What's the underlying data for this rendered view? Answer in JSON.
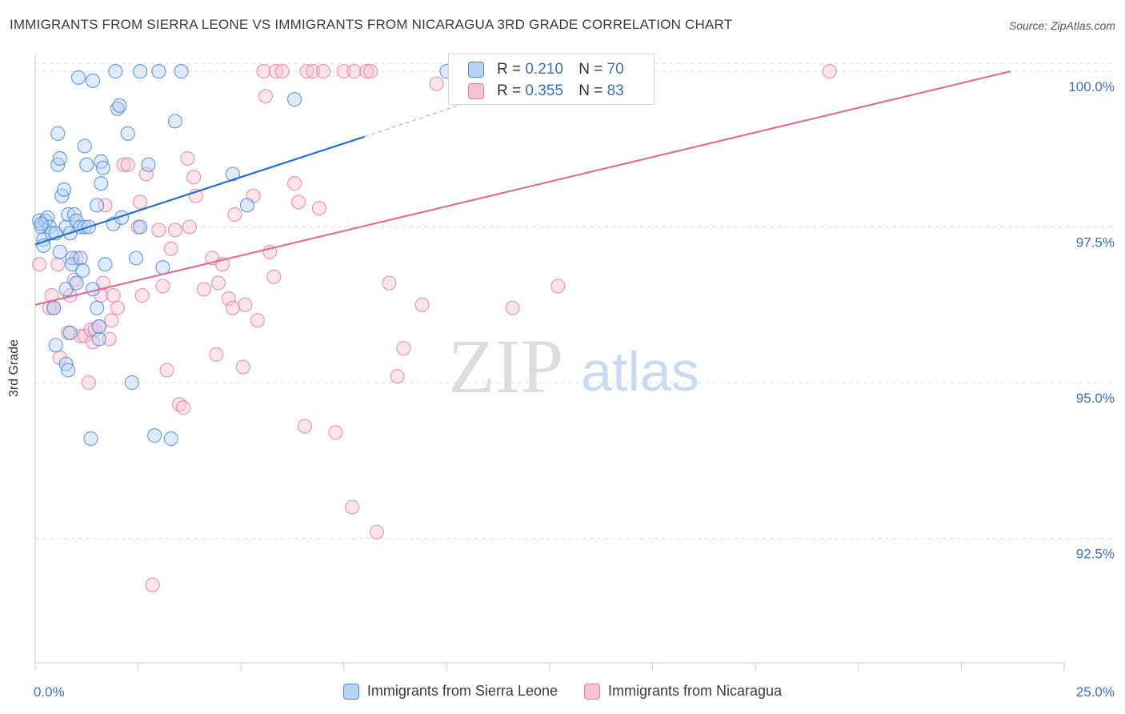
{
  "title": "IMMIGRANTS FROM SIERRA LEONE VS IMMIGRANTS FROM NICARAGUA 3RD GRADE CORRELATION CHART",
  "source": "Source: ZipAtlas.com",
  "watermark": {
    "zip": "ZIP",
    "atlas": "atlas"
  },
  "colors": {
    "blue": "#4a8ad8",
    "blue_fill": "#b9d1f3",
    "blue_line": "#2a6fca",
    "pink": "#e37aa0",
    "pink_fill": "#f7c3d3",
    "pink_line": "#e06f98",
    "axis_text": "#3a6fc4",
    "grid": "#dddddd"
  },
  "stats": {
    "blue": {
      "r_label": "R =",
      "r_value": "0.210",
      "n_label": "N =",
      "n_value": "70"
    },
    "pink": {
      "r_label": "R =",
      "r_value": "0.355",
      "n_label": "N =",
      "n_value": "83"
    }
  },
  "legend": {
    "series_blue": "Immigrants from Sierra Leone",
    "series_pink": "Immigrants from Nicaragua"
  },
  "chart_data": {
    "type": "scatter",
    "title": "IMMIGRANTS FROM SIERRA LEONE VS IMMIGRANTS FROM NICARAGUA 3RD GRADE CORRELATION CHART",
    "xlabel": "",
    "ylabel": "3rd Grade",
    "xlim": [
      0,
      25
    ],
    "ylim": [
      90.5,
      100.4
    ],
    "x_tick_labels": [
      {
        "value": 0,
        "label": "0.0%"
      },
      {
        "value": 25,
        "label": "25.0%"
      }
    ],
    "y_tick_labels": [
      {
        "value": 100,
        "label": "100.0%"
      },
      {
        "value": 97.5,
        "label": "97.5%"
      },
      {
        "value": 95,
        "label": "95.0%"
      },
      {
        "value": 92.5,
        "label": "92.5%"
      }
    ],
    "grid": true,
    "series": [
      {
        "name": "Immigrants from Sierra Leone",
        "color": "#4a8ad8",
        "trend": {
          "x0": 0,
          "y0": 97.22,
          "x1": 8.0,
          "y1": 98.95,
          "dashed_to_x": 10.5,
          "dashed_to_y": 99.5
        },
        "points": [
          [
            0.1,
            97.6
          ],
          [
            0.15,
            97.5
          ],
          [
            0.2,
            97.3
          ],
          [
            0.2,
            97.2
          ],
          [
            0.25,
            97.6
          ],
          [
            0.3,
            97.65
          ],
          [
            0.35,
            97.5
          ],
          [
            0.4,
            97.4
          ],
          [
            0.45,
            96.2
          ],
          [
            0.5,
            95.6
          ],
          [
            0.5,
            97.4
          ],
          [
            0.55,
            99.0
          ],
          [
            0.55,
            98.5
          ],
          [
            0.6,
            98.6
          ],
          [
            0.6,
            97.1
          ],
          [
            0.65,
            98.0
          ],
          [
            0.7,
            98.1
          ],
          [
            0.75,
            97.5
          ],
          [
            0.75,
            95.3
          ],
          [
            0.75,
            96.5
          ],
          [
            0.8,
            97.7
          ],
          [
            0.85,
            97.4
          ],
          [
            0.85,
            95.8
          ],
          [
            0.8,
            95.2
          ],
          [
            0.9,
            97.0
          ],
          [
            0.9,
            96.9
          ],
          [
            0.95,
            97.7
          ],
          [
            1.0,
            97.6
          ],
          [
            1.0,
            96.6
          ],
          [
            1.05,
            99.9
          ],
          [
            1.1,
            97.5
          ],
          [
            1.1,
            97.0
          ],
          [
            1.15,
            96.8
          ],
          [
            1.2,
            98.8
          ],
          [
            1.2,
            97.5
          ],
          [
            1.25,
            98.5
          ],
          [
            1.3,
            97.5
          ],
          [
            1.35,
            94.1
          ],
          [
            1.4,
            99.85
          ],
          [
            1.4,
            96.5
          ],
          [
            1.5,
            97.85
          ],
          [
            1.5,
            96.2
          ],
          [
            1.55,
            95.7
          ],
          [
            1.55,
            95.9
          ],
          [
            1.6,
            98.2
          ],
          [
            1.6,
            98.55
          ],
          [
            1.65,
            98.45
          ],
          [
            1.7,
            96.9
          ],
          [
            1.9,
            97.55
          ],
          [
            1.95,
            100.0
          ],
          [
            2.0,
            99.4
          ],
          [
            2.05,
            99.45
          ],
          [
            2.1,
            97.65
          ],
          [
            2.25,
            99.0
          ],
          [
            2.35,
            95.0
          ],
          [
            2.45,
            97.0
          ],
          [
            2.55,
            97.5
          ],
          [
            2.55,
            100.0
          ],
          [
            2.75,
            98.5
          ],
          [
            2.9,
            94.15
          ],
          [
            3.0,
            100.0
          ],
          [
            3.1,
            96.85
          ],
          [
            3.3,
            94.1
          ],
          [
            3.4,
            99.2
          ],
          [
            3.55,
            100.0
          ],
          [
            4.8,
            98.35
          ],
          [
            5.15,
            97.85
          ],
          [
            6.3,
            99.55
          ],
          [
            10.0,
            100.0
          ],
          [
            0.15,
            97.55
          ]
        ]
      },
      {
        "name": "Immigrants from Nicaragua",
        "color": "#e37aa0",
        "trend": {
          "x0": 0,
          "y0": 96.25,
          "x1": 23.7,
          "y1": 100.0
        },
        "points": [
          [
            0.1,
            96.9
          ],
          [
            0.35,
            96.2
          ],
          [
            0.4,
            96.4
          ],
          [
            0.45,
            96.2
          ],
          [
            0.55,
            96.9
          ],
          [
            0.6,
            95.4
          ],
          [
            0.8,
            95.8
          ],
          [
            0.85,
            96.4
          ],
          [
            0.95,
            96.65
          ],
          [
            1.0,
            97.0
          ],
          [
            1.1,
            95.75
          ],
          [
            1.2,
            95.75
          ],
          [
            1.3,
            95.0
          ],
          [
            1.35,
            95.85
          ],
          [
            1.4,
            95.65
          ],
          [
            1.45,
            95.85
          ],
          [
            1.55,
            95.9
          ],
          [
            1.6,
            96.4
          ],
          [
            1.65,
            96.6
          ],
          [
            1.7,
            97.85
          ],
          [
            1.8,
            95.7
          ],
          [
            1.85,
            96.0
          ],
          [
            1.9,
            96.4
          ],
          [
            2.0,
            96.2
          ],
          [
            2.15,
            98.5
          ],
          [
            2.25,
            98.5
          ],
          [
            2.5,
            97.5
          ],
          [
            2.55,
            97.9
          ],
          [
            2.6,
            96.4
          ],
          [
            2.7,
            98.35
          ],
          [
            2.85,
            91.75
          ],
          [
            3.0,
            97.45
          ],
          [
            3.1,
            96.55
          ],
          [
            3.2,
            95.2
          ],
          [
            3.3,
            97.15
          ],
          [
            3.4,
            97.45
          ],
          [
            3.5,
            94.65
          ],
          [
            3.6,
            94.6
          ],
          [
            3.7,
            98.6
          ],
          [
            3.75,
            97.5
          ],
          [
            3.85,
            98.3
          ],
          [
            3.9,
            98.0
          ],
          [
            4.1,
            96.5
          ],
          [
            4.3,
            97.0
          ],
          [
            4.4,
            95.45
          ],
          [
            4.45,
            96.6
          ],
          [
            4.55,
            96.9
          ],
          [
            4.7,
            96.35
          ],
          [
            4.8,
            96.2
          ],
          [
            4.85,
            97.7
          ],
          [
            5.05,
            95.25
          ],
          [
            5.1,
            96.25
          ],
          [
            5.3,
            98.0
          ],
          [
            5.4,
            96.0
          ],
          [
            5.55,
            100.0
          ],
          [
            5.6,
            99.6
          ],
          [
            5.7,
            97.1
          ],
          [
            5.8,
            96.7
          ],
          [
            5.85,
            100.0
          ],
          [
            6.0,
            100.0
          ],
          [
            6.3,
            98.2
          ],
          [
            6.4,
            97.9
          ],
          [
            6.55,
            94.3
          ],
          [
            6.6,
            100.0
          ],
          [
            6.75,
            100.0
          ],
          [
            6.9,
            97.8
          ],
          [
            7.0,
            100.0
          ],
          [
            7.3,
            94.2
          ],
          [
            7.5,
            100.0
          ],
          [
            7.7,
            93.0
          ],
          [
            7.75,
            100.0
          ],
          [
            8.05,
            100.0
          ],
          [
            8.15,
            100.0
          ],
          [
            8.3,
            92.6
          ],
          [
            8.6,
            96.6
          ],
          [
            8.8,
            95.1
          ],
          [
            8.95,
            95.55
          ],
          [
            9.4,
            96.25
          ],
          [
            9.75,
            99.8
          ],
          [
            11.6,
            96.2
          ],
          [
            12.7,
            96.55
          ],
          [
            13.9,
            99.6
          ],
          [
            19.3,
            100.0
          ]
        ]
      }
    ]
  }
}
